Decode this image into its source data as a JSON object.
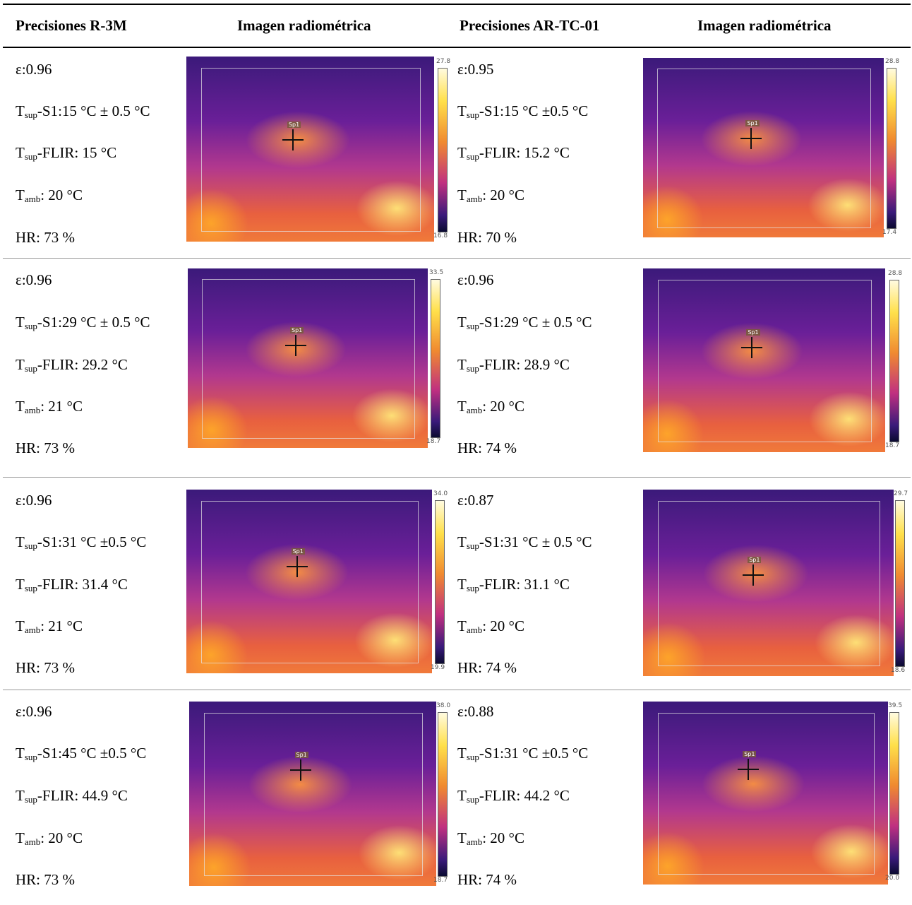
{
  "header": {
    "columns": [
      "Precisiones R-3M",
      "Imagen radiométrica",
      "Precisiones AR-TC-01",
      "Imagen radiométrica"
    ]
  },
  "rows": [
    {
      "left": {
        "lines": [
          {
            "text": "ε:0.96"
          },
          {
            "symbol": "T",
            "sub": "sup",
            "text": "-S1:15 °C ± 0.5 °C"
          },
          {
            "symbol": "T",
            "sub": "sup",
            "text": "-FLIR: 15 °C"
          },
          {
            "symbol": "T",
            "sub": "amb",
            "text": ": 20 °C"
          },
          {
            "text": "HR: 73 %"
          }
        ]
      },
      "left_image": {
        "scale_max": "27.8",
        "scale_min": "16.8",
        "spot": "Sp1"
      },
      "right": {
        "lines": [
          {
            "text": "ε:0.95"
          },
          {
            "symbol": "T",
            "sub": "sup",
            "text": "-S1:15 °C ±0.5 °C"
          },
          {
            "symbol": "T",
            "sub": "sup",
            "text": "-FLIR: 15.2 °C"
          },
          {
            "symbol": "T",
            "sub": "amb",
            "text": ": 20 °C"
          },
          {
            "text": "HR: 70 %"
          }
        ]
      },
      "right_image": {
        "scale_max": "28.8",
        "scale_min": "17.4",
        "spot": "Sp1"
      }
    },
    {
      "left": {
        "lines": [
          {
            "text": "ε:0.96"
          },
          {
            "symbol": "T",
            "sub": "sup",
            "text": "-S1:29 °C ± 0.5 °C"
          },
          {
            "symbol": "T",
            "sub": "sup",
            "text": "-FLIR: 29.2 °C"
          },
          {
            "symbol": "T",
            "sub": "amb",
            "text": ": 21 °C"
          },
          {
            "text": "HR: 73 %"
          }
        ]
      },
      "left_image": {
        "scale_max": "33.5",
        "scale_min": "18.7",
        "spot": "Sp1"
      },
      "right": {
        "lines": [
          {
            "text": "ε:0.96"
          },
          {
            "symbol": "T",
            "sub": "sup",
            "text": "-S1:29 °C ± 0.5 °C"
          },
          {
            "symbol": "T",
            "sub": "sup",
            "text": "-FLIR: 28.9 °C"
          },
          {
            "symbol": "T",
            "sub": "amb",
            "text": ": 20 °C"
          },
          {
            "text": "HR: 74 %"
          }
        ]
      },
      "right_image": {
        "scale_max": "28.8",
        "scale_min": "18.7",
        "spot": "Sp1"
      }
    },
    {
      "left": {
        "lines": [
          {
            "text": "ε:0.96"
          },
          {
            "symbol": "T",
            "sub": "sup",
            "text": "-S1:31 °C ±0.5 °C"
          },
          {
            "symbol": "T",
            "sub": "sup",
            "text": "-FLIR: 31.4 °C"
          },
          {
            "symbol": "T",
            "sub": "amb",
            "text": ": 21 °C"
          },
          {
            "text": "HR: 73 %"
          }
        ]
      },
      "left_image": {
        "scale_max": "34.0",
        "scale_min": "19.9",
        "spot": "Sp1"
      },
      "right": {
        "lines": [
          {
            "text": "ε:0.87"
          },
          {
            "symbol": "T",
            "sub": "sup",
            "text": "-S1:31 °C ± 0.5 °C"
          },
          {
            "symbol": "T",
            "sub": "sup",
            "text": "-FLIR: 31.1 °C"
          },
          {
            "symbol": "T",
            "sub": "amb",
            "text": ": 20 °C"
          },
          {
            "text": "HR: 74 %"
          }
        ]
      },
      "right_image": {
        "scale_max": "29.7",
        "scale_min": "18.6",
        "spot": "Sp1"
      }
    },
    {
      "left": {
        "lines": [
          {
            "text": "ε:0.96"
          },
          {
            "symbol": "T",
            "sub": "sup",
            "text": "-S1:45 °C ±0.5 °C"
          },
          {
            "symbol": "T",
            "sub": "sup",
            "text": "-FLIR: 44.9 °C"
          },
          {
            "symbol": "T",
            "sub": "amb",
            "text": ": 20 °C"
          },
          {
            "text": "HR: 73 %"
          }
        ]
      },
      "left_image": {
        "scale_max": "38.0",
        "scale_min": "18.7",
        "spot": "Sp1"
      },
      "right": {
        "lines": [
          {
            "text": "ε:0.88"
          },
          {
            "symbol": "T",
            "sub": "sup",
            "text": "-S1:31 °C ±0.5 °C"
          },
          {
            "symbol": "T",
            "sub": "sup",
            "text": "-FLIR: 44.2 °C"
          },
          {
            "symbol": "T",
            "sub": "amb",
            "text": ": 20 °C"
          },
          {
            "text": "HR: 74 %"
          }
        ]
      },
      "right_image": {
        "scale_max": "39.5",
        "scale_min": "20.0",
        "spot": "Sp1"
      }
    }
  ]
}
